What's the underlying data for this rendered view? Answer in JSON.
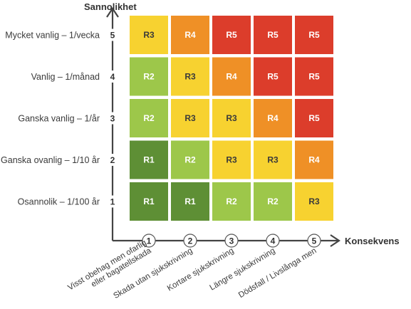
{
  "y_axis": {
    "title": "Sannolikhet"
  },
  "x_axis": {
    "title": "Konsekvens"
  },
  "rows": [
    {
      "num": "5",
      "label": "Mycket vanlig – 1/vecka",
      "cells": [
        "R3",
        "R4",
        "R5",
        "R5",
        "R5"
      ]
    },
    {
      "num": "4",
      "label": "Vanlig – 1/månad",
      "cells": [
        "R2",
        "R3",
        "R4",
        "R5",
        "R5"
      ]
    },
    {
      "num": "3",
      "label": "Ganska vanlig – 1/år",
      "cells": [
        "R2",
        "R3",
        "R3",
        "R4",
        "R5"
      ]
    },
    {
      "num": "2",
      "label": "Ganska ovanlig – 1/10 år",
      "cells": [
        "R1",
        "R2",
        "R3",
        "R3",
        "R4"
      ]
    },
    {
      "num": "1",
      "label": "Osannolik – 1/100 år",
      "cells": [
        "R1",
        "R1",
        "R2",
        "R2",
        "R3"
      ]
    }
  ],
  "columns": [
    {
      "num": "1",
      "label_lines": [
        "Visst obehag men ofarlig",
        "eller bagatellskada"
      ]
    },
    {
      "num": "2",
      "label_lines": [
        "Skada utan sjukskrivning"
      ]
    },
    {
      "num": "3",
      "label_lines": [
        "Kortare sjukskrivning"
      ]
    },
    {
      "num": "4",
      "label_lines": [
        "Längre sjukskrivning"
      ]
    },
    {
      "num": "5",
      "label_lines": [
        "Dödsfall / Livslånga men"
      ]
    }
  ],
  "risk_colors": {
    "R1": "#5e8f35",
    "R2": "#9dc74a",
    "R3": "#f7d230",
    "R4": "#ef9026",
    "R5": "#dc3d2b"
  }
}
